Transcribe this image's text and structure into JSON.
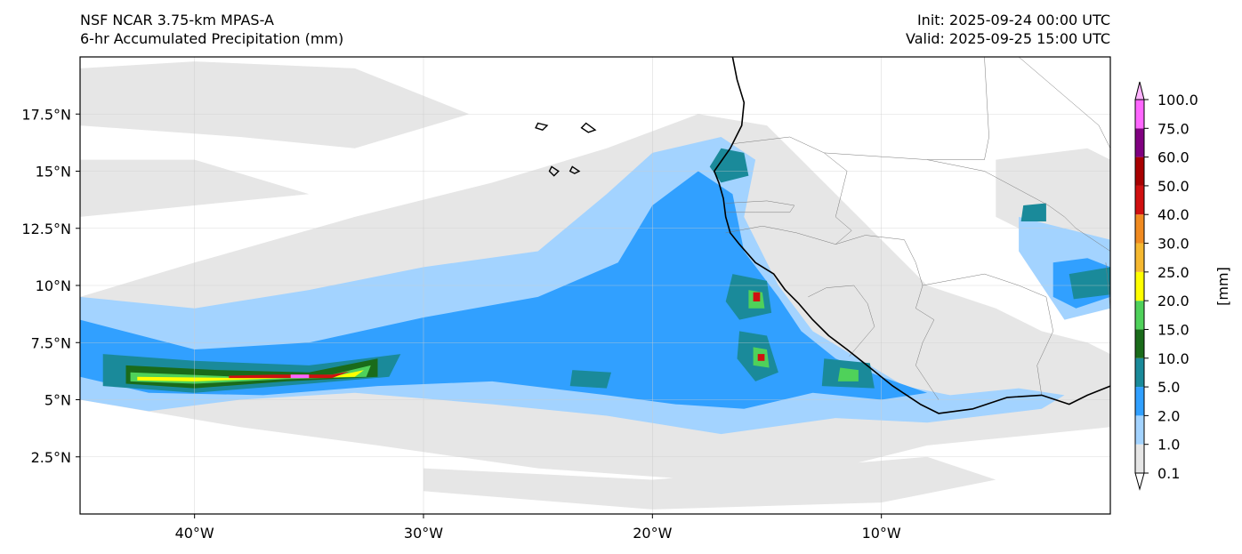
{
  "title": {
    "left_line1": "NSF NCAR 3.75-km MPAS-A",
    "left_line2": "6-hr Accumulated Precipitation (mm)",
    "right_line1": "Init: 2025-09-24 00:00 UTC",
    "right_line2": "Valid: 2025-09-25 15:00 UTC"
  },
  "map": {
    "lon_range": [
      -45,
      0
    ],
    "lat_range": [
      0,
      20
    ],
    "lon_ticks": [
      {
        "value": -40,
        "label": "40°W"
      },
      {
        "value": -30,
        "label": "30°W"
      },
      {
        "value": -20,
        "label": "20°W"
      },
      {
        "value": -10,
        "label": "10°W"
      }
    ],
    "lat_ticks": [
      {
        "value": 2.5,
        "label": "2.5°N"
      },
      {
        "value": 5,
        "label": "5°N"
      },
      {
        "value": 7.5,
        "label": "7.5°N"
      },
      {
        "value": 10,
        "label": "10°N"
      },
      {
        "value": 12.5,
        "label": "12.5°N"
      },
      {
        "value": 15,
        "label": "15°N"
      },
      {
        "value": 17.5,
        "label": "17.5°N"
      }
    ],
    "grid": true,
    "coastline": [
      [
        -16.5,
        20.0
      ],
      [
        -16.3,
        19.0
      ],
      [
        -16.0,
        18.0
      ],
      [
        -16.1,
        17.0
      ],
      [
        -16.6,
        16.0
      ],
      [
        -17.3,
        15.0
      ],
      [
        -17.1,
        14.5
      ],
      [
        -16.9,
        13.8
      ],
      [
        -16.8,
        13.0
      ],
      [
        -16.6,
        12.3
      ],
      [
        -16.2,
        11.8
      ],
      [
        -15.5,
        11.0
      ],
      [
        -14.7,
        10.5
      ],
      [
        -14.2,
        9.8
      ],
      [
        -13.6,
        9.2
      ],
      [
        -13.0,
        8.5
      ],
      [
        -12.3,
        7.8
      ],
      [
        -11.5,
        7.2
      ],
      [
        -10.5,
        6.4
      ],
      [
        -9.5,
        5.6
      ],
      [
        -8.3,
        4.8
      ],
      [
        -7.5,
        4.4
      ],
      [
        -6.0,
        4.6
      ],
      [
        -4.5,
        5.1
      ],
      [
        -3.0,
        5.2
      ],
      [
        -1.8,
        4.8
      ],
      [
        -1.0,
        5.2
      ],
      [
        0.0,
        5.6
      ]
    ],
    "islands": [
      [
        [
          -22.8,
          16.7
        ],
        [
          -22.5,
          16.8
        ],
        [
          -22.9,
          17.1
        ],
        [
          -23.1,
          16.9
        ],
        [
          -22.8,
          16.7
        ]
      ],
      [
        [
          -24.4,
          15.2
        ],
        [
          -24.1,
          15.0
        ],
        [
          -24.3,
          14.8
        ],
        [
          -24.5,
          15.0
        ],
        [
          -24.4,
          15.2
        ]
      ],
      [
        [
          -23.5,
          15.2
        ],
        [
          -23.2,
          15.0
        ],
        [
          -23.4,
          14.9
        ],
        [
          -23.6,
          15.0
        ],
        [
          -23.5,
          15.2
        ]
      ],
      [
        [
          -25.0,
          17.1
        ],
        [
          -24.6,
          17.0
        ],
        [
          -24.8,
          16.8
        ],
        [
          -25.1,
          16.9
        ],
        [
          -25.0,
          17.1
        ]
      ]
    ],
    "borders": [
      [
        [
          -16.5,
          16.2
        ],
        [
          -14.0,
          16.5
        ],
        [
          -12.5,
          15.8
        ],
        [
          -11.5,
          15.0
        ],
        [
          -12.0,
          13.0
        ],
        [
          -11.3,
          12.4
        ],
        [
          -12.0,
          11.8
        ],
        [
          -13.7,
          12.3
        ],
        [
          -15.2,
          12.6
        ],
        [
          -16.8,
          12.3
        ]
      ],
      [
        [
          -16.8,
          13.6
        ],
        [
          -15.0,
          13.7
        ],
        [
          -13.8,
          13.5
        ],
        [
          -14.0,
          13.2
        ],
        [
          -15.5,
          13.2
        ],
        [
          -16.8,
          13.2
        ]
      ],
      [
        [
          -12.0,
          11.8
        ],
        [
          -10.7,
          12.2
        ],
        [
          -9.0,
          12.0
        ],
        [
          -8.5,
          11.0
        ],
        [
          -8.2,
          10.0
        ],
        [
          -8.5,
          9.0
        ],
        [
          -7.7,
          8.5
        ],
        [
          -8.2,
          7.5
        ],
        [
          -8.5,
          6.5
        ],
        [
          -7.5,
          5.0
        ]
      ],
      [
        [
          -13.2,
          9.5
        ],
        [
          -12.4,
          9.9
        ],
        [
          -11.2,
          10.0
        ],
        [
          -10.6,
          9.2
        ],
        [
          -10.3,
          8.2
        ],
        [
          -11.4,
          6.9
        ]
      ],
      [
        [
          -12.5,
          15.8
        ],
        [
          -8.0,
          15.5
        ],
        [
          -5.5,
          15.5
        ],
        [
          -5.3,
          16.5
        ],
        [
          -5.5,
          20.0
        ]
      ],
      [
        [
          -8.0,
          15.5
        ],
        [
          -5.5,
          15.0
        ],
        [
          -4.0,
          14.2
        ],
        [
          -2.7,
          13.5
        ],
        [
          -2.0,
          13.0
        ],
        [
          -1.5,
          12.5
        ],
        [
          0.0,
          11.5
        ]
      ],
      [
        [
          -5.5,
          10.5
        ],
        [
          -4.0,
          10.0
        ],
        [
          -2.8,
          9.5
        ],
        [
          -2.5,
          8.0
        ],
        [
          -3.2,
          6.5
        ],
        [
          -3.0,
          5.2
        ]
      ],
      [
        [
          -5.5,
          10.5
        ],
        [
          -8.2,
          10.0
        ]
      ],
      [
        [
          -0.2,
          11.0
        ],
        [
          0.0,
          9.0
        ]
      ],
      [
        [
          -4.0,
          20.0
        ],
        [
          -0.5,
          17.0
        ],
        [
          0.0,
          16.0
        ]
      ]
    ]
  },
  "colorbar": {
    "label": "[mm]",
    "levels": [
      "0.1",
      "1.0",
      "2.0",
      "5.0",
      "10.0",
      "15.0",
      "20.0",
      "25.0",
      "30.0",
      "40.0",
      "50.0",
      "60.0",
      "75.0",
      "100.0"
    ],
    "colors": [
      "#e6e6e6",
      "#a3d3ff",
      "#31a0ff",
      "#1a8a9a",
      "#1a6b1a",
      "#4fd15a",
      "#ffff00",
      "#f5b830",
      "#f08a20",
      "#d01010",
      "#a80000",
      "#800080",
      "#ff66ff"
    ],
    "under_color": "#ffffff",
    "over_color": "#ffb3ff"
  },
  "precip_regions": [
    {
      "level": 0,
      "shape": [
        [
          -45,
          9.5
        ],
        [
          -40,
          11.0
        ],
        [
          -33,
          13.0
        ],
        [
          -27,
          14.5
        ],
        [
          -22,
          16.0
        ],
        [
          -18,
          17.5
        ],
        [
          -15,
          17.0
        ],
        [
          -13,
          15.0
        ],
        [
          -10,
          12.0
        ],
        [
          -8,
          10.0
        ],
        [
          -5,
          9.0
        ],
        [
          -3,
          8.0
        ],
        [
          -1,
          7.5
        ],
        [
          0,
          7.0
        ],
        [
          0,
          3.8
        ],
        [
          -3,
          3.5
        ],
        [
          -8,
          3.0
        ],
        [
          -12,
          2.0
        ],
        [
          -18,
          1.5
        ],
        [
          -25,
          2.0
        ],
        [
          -32,
          3.0
        ],
        [
          -38,
          3.8
        ],
        [
          -45,
          5.0
        ]
      ]
    },
    {
      "level": 0,
      "shape": [
        [
          -45,
          19.5
        ],
        [
          -40,
          19.8
        ],
        [
          -33,
          19.5
        ],
        [
          -28,
          17.5
        ],
        [
          -33,
          16.0
        ],
        [
          -38,
          16.5
        ],
        [
          -45,
          17.0
        ]
      ]
    },
    {
      "level": 0,
      "shape": [
        [
          -45,
          15.5
        ],
        [
          -40,
          15.5
        ],
        [
          -35,
          14.0
        ],
        [
          -40,
          13.5
        ],
        [
          -45,
          13.0
        ]
      ]
    },
    {
      "level": 0,
      "shape": [
        [
          -5,
          15.5
        ],
        [
          -1,
          16.0
        ],
        [
          0,
          15.5
        ],
        [
          0,
          10.5
        ],
        [
          -2,
          10.0
        ],
        [
          -3,
          12.0
        ],
        [
          -5,
          13.0
        ]
      ]
    },
    {
      "level": 0,
      "shape": [
        [
          -30,
          1.0
        ],
        [
          -20,
          0.2
        ],
        [
          -10,
          0.5
        ],
        [
          -5,
          1.5
        ],
        [
          -8,
          2.5
        ],
        [
          -20,
          1.5
        ],
        [
          -30,
          2.0
        ]
      ]
    },
    {
      "level": 1,
      "shape": [
        [
          -45,
          9.5
        ],
        [
          -40,
          9.0
        ],
        [
          -35,
          9.8
        ],
        [
          -30,
          10.8
        ],
        [
          -25,
          11.5
        ],
        [
          -22,
          14.0
        ],
        [
          -20,
          15.8
        ],
        [
          -17,
          16.5
        ],
        [
          -15.5,
          15.5
        ],
        [
          -16,
          13.0
        ],
        [
          -14.5,
          10.0
        ],
        [
          -13.0,
          8.0
        ],
        [
          -11,
          6.8
        ],
        [
          -9,
          5.6
        ],
        [
          -7,
          5.2
        ],
        [
          -4,
          5.5
        ],
        [
          -2,
          5.2
        ],
        [
          -3,
          4.6
        ],
        [
          -8,
          4.0
        ],
        [
          -12,
          4.2
        ],
        [
          -17,
          3.5
        ],
        [
          -22,
          4.3
        ],
        [
          -27,
          4.8
        ],
        [
          -33,
          5.3
        ],
        [
          -38,
          5.0
        ],
        [
          -42,
          4.5
        ],
        [
          -45,
          5.0
        ]
      ]
    },
    {
      "level": 1,
      "shape": [
        [
          -4,
          13.0
        ],
        [
          -2,
          12.5
        ],
        [
          0,
          12.0
        ],
        [
          0,
          9.0
        ],
        [
          -2,
          8.5
        ],
        [
          -3,
          10.0
        ],
        [
          -4,
          11.5
        ]
      ]
    },
    {
      "level": 2,
      "shape": [
        [
          -45,
          8.5
        ],
        [
          -40,
          7.2
        ],
        [
          -35,
          7.5
        ],
        [
          -30,
          8.6
        ],
        [
          -25,
          9.5
        ],
        [
          -21.5,
          11.0
        ],
        [
          -20,
          13.5
        ],
        [
          -18,
          15.0
        ],
        [
          -16.5,
          14.0
        ],
        [
          -16,
          11.5
        ],
        [
          -14.5,
          9.5
        ],
        [
          -13.5,
          8.0
        ],
        [
          -12,
          6.8
        ],
        [
          -10,
          6.0
        ],
        [
          -8,
          5.3
        ],
        [
          -10,
          5.0
        ],
        [
          -13,
          5.3
        ],
        [
          -16,
          4.6
        ],
        [
          -19,
          4.8
        ],
        [
          -22,
          5.2
        ],
        [
          -27,
          5.8
        ],
        [
          -32,
          5.6
        ],
        [
          -37,
          5.2
        ],
        [
          -42,
          5.3
        ],
        [
          -45,
          6.0
        ]
      ]
    },
    {
      "level": 2,
      "shape": [
        [
          -2.5,
          11.0
        ],
        [
          -1,
          11.2
        ],
        [
          0,
          10.8
        ],
        [
          0,
          9.5
        ],
        [
          -1.5,
          9.0
        ],
        [
          -2.5,
          9.5
        ]
      ]
    },
    {
      "level": 3,
      "shape": [
        [
          -44,
          7.0
        ],
        [
          -40,
          6.7
        ],
        [
          -35,
          6.5
        ],
        [
          -31,
          7.0
        ],
        [
          -31.5,
          6.0
        ],
        [
          -35,
          5.7
        ],
        [
          -40,
          5.3
        ],
        [
          -44,
          5.6
        ]
      ]
    },
    {
      "level": 3,
      "shape": [
        [
          -17,
          16.0
        ],
        [
          -16,
          15.8
        ],
        [
          -15.8,
          14.8
        ],
        [
          -17,
          14.5
        ],
        [
          -17.5,
          15.2
        ]
      ]
    },
    {
      "level": 3,
      "shape": [
        [
          -16.5,
          10.5
        ],
        [
          -15.0,
          10.2
        ],
        [
          -14.8,
          8.8
        ],
        [
          -16.2,
          8.5
        ],
        [
          -16.8,
          9.3
        ]
      ]
    },
    {
      "level": 3,
      "shape": [
        [
          -16.2,
          8.0
        ],
        [
          -15,
          7.8
        ],
        [
          -14.5,
          6.2
        ],
        [
          -15.5,
          5.8
        ],
        [
          -16.3,
          6.8
        ]
      ]
    },
    {
      "level": 3,
      "shape": [
        [
          -12.5,
          6.8
        ],
        [
          -10.5,
          6.6
        ],
        [
          -10.3,
          5.5
        ],
        [
          -12.6,
          5.6
        ]
      ]
    },
    {
      "level": 3,
      "shape": [
        [
          -23.5,
          6.3
        ],
        [
          -21.8,
          6.2
        ],
        [
          -22,
          5.5
        ],
        [
          -23.6,
          5.6
        ]
      ]
    },
    {
      "level": 3,
      "shape": [
        [
          -1.8,
          10.5
        ],
        [
          0,
          10.8
        ],
        [
          0,
          9.6
        ],
        [
          -1.6,
          9.4
        ]
      ]
    },
    {
      "level": 3,
      "shape": [
        [
          -3.8,
          13.5
        ],
        [
          -2.8,
          13.6
        ],
        [
          -2.8,
          12.8
        ],
        [
          -3.9,
          12.8
        ]
      ]
    },
    {
      "level": 4,
      "shape": [
        [
          -43,
          6.5
        ],
        [
          -39,
          6.3
        ],
        [
          -35,
          6.2
        ],
        [
          -32,
          6.8
        ],
        [
          -32,
          6.0
        ],
        [
          -36,
          5.8
        ],
        [
          -40,
          5.5
        ],
        [
          -43,
          5.7
        ]
      ]
    },
    {
      "level": 5,
      "shape": [
        [
          -42.8,
          6.2
        ],
        [
          -38,
          6.0
        ],
        [
          -34,
          6.1
        ],
        [
          -32.3,
          6.5
        ],
        [
          -32.5,
          6.0
        ],
        [
          -36,
          5.9
        ],
        [
          -40,
          5.7
        ],
        [
          -42.8,
          5.8
        ]
      ]
    },
    {
      "level": 5,
      "shape": [
        [
          -15.8,
          9.8
        ],
        [
          -15.2,
          9.7
        ],
        [
          -15.1,
          9.0
        ],
        [
          -15.8,
          9.0
        ]
      ]
    },
    {
      "level": 5,
      "shape": [
        [
          -15.6,
          7.3
        ],
        [
          -15.0,
          7.2
        ],
        [
          -14.9,
          6.4
        ],
        [
          -15.6,
          6.5
        ]
      ]
    },
    {
      "level": 5,
      "shape": [
        [
          -11.8,
          6.4
        ],
        [
          -11.0,
          6.3
        ],
        [
          -11.0,
          5.8
        ],
        [
          -11.9,
          5.8
        ]
      ]
    },
    {
      "level": 6,
      "shape": [
        [
          -42.5,
          6.0
        ],
        [
          -38,
          5.95
        ],
        [
          -34,
          6.0
        ],
        [
          -32.6,
          6.3
        ],
        [
          -33,
          6.0
        ],
        [
          -36,
          5.95
        ],
        [
          -40,
          5.8
        ],
        [
          -42.5,
          5.85
        ]
      ]
    },
    {
      "level": 9,
      "shape": [
        [
          -38.5,
          6.05
        ],
        [
          -36.5,
          6.1
        ],
        [
          -34,
          6.1
        ],
        [
          -33.2,
          6.25
        ],
        [
          -34,
          5.95
        ],
        [
          -36.5,
          5.95
        ],
        [
          -38.5,
          5.95
        ]
      ]
    },
    {
      "level": 9,
      "shape": [
        [
          -15.6,
          9.7
        ],
        [
          -15.3,
          9.7
        ],
        [
          -15.3,
          9.3
        ],
        [
          -15.6,
          9.3
        ]
      ]
    },
    {
      "level": 9,
      "shape": [
        [
          -15.4,
          7.0
        ],
        [
          -15.1,
          7.0
        ],
        [
          -15.1,
          6.7
        ],
        [
          -15.4,
          6.7
        ]
      ]
    },
    {
      "level": 12,
      "shape": [
        [
          -35.8,
          6.1
        ],
        [
          -35.0,
          6.1
        ],
        [
          -35.0,
          5.95
        ],
        [
          -35.8,
          5.95
        ]
      ]
    }
  ]
}
